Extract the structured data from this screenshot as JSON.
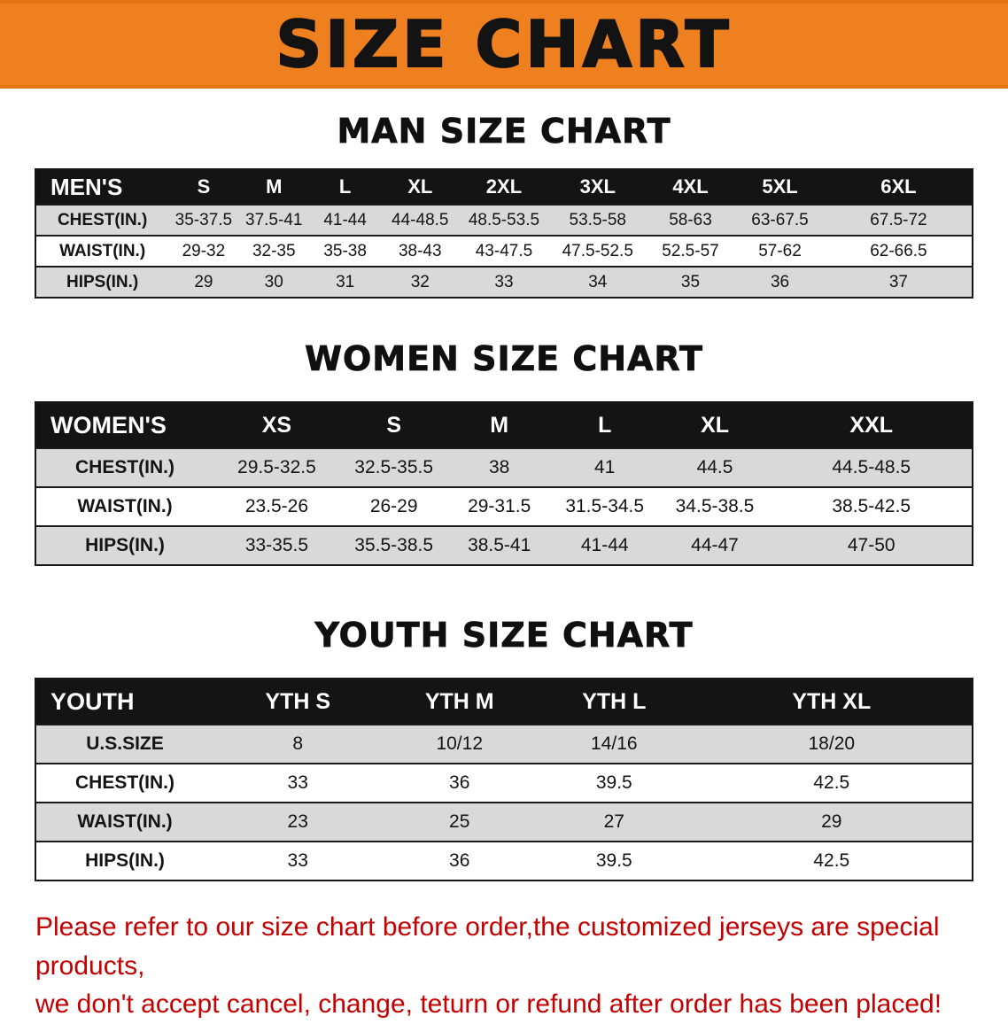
{
  "banner": {
    "title": "SIZE CHART",
    "background_color": "#ef8020",
    "text_color": "#131313"
  },
  "chart_data": [
    {
      "type": "table",
      "title": "MAN SIZE CHART",
      "label": "MEN'S",
      "columns": [
        "S",
        "M",
        "L",
        "XL",
        "2XL",
        "3XL",
        "4XL",
        "5XL",
        "6XL"
      ],
      "rows": [
        {
          "label": "CHEST(IN.)",
          "values": [
            "35-37.5",
            "37.5-41",
            "41-44",
            "44-48.5",
            "48.5-53.5",
            "53.5-58",
            "58-63",
            "63-67.5",
            "67.5-72"
          ]
        },
        {
          "label": "WAIST(IN.)",
          "values": [
            "29-32",
            "32-35",
            "35-38",
            "38-43",
            "43-47.5",
            "47.5-52.5",
            "52.5-57",
            "57-62",
            "62-66.5"
          ]
        },
        {
          "label": "HIPS(IN.)",
          "values": [
            "29",
            "30",
            "31",
            "32",
            "33",
            "34",
            "35",
            "36",
            "37"
          ]
        }
      ]
    },
    {
      "type": "table",
      "title": "WOMEN SIZE CHART",
      "label": "WOMEN'S",
      "columns": [
        "XS",
        "S",
        "M",
        "L",
        "XL",
        "XXL"
      ],
      "rows": [
        {
          "label": "CHEST(IN.)",
          "values": [
            "29.5-32.5",
            "32.5-35.5",
            "38",
            "41",
            "44.5",
            "44.5-48.5"
          ]
        },
        {
          "label": "WAIST(IN.)",
          "values": [
            "23.5-26",
            "26-29",
            "29-31.5",
            "31.5-34.5",
            "34.5-38.5",
            "38.5-42.5"
          ]
        },
        {
          "label": "HIPS(IN.)",
          "values": [
            "33-35.5",
            "35.5-38.5",
            "38.5-41",
            "41-44",
            "44-47",
            "47-50"
          ]
        }
      ]
    },
    {
      "type": "table",
      "title": "YOUTH SIZE CHART",
      "label": "YOUTH",
      "columns": [
        "YTH S",
        "YTH M",
        "YTH L",
        "YTH XL"
      ],
      "rows": [
        {
          "label": "U.S.SIZE",
          "values": [
            "8",
            "10/12",
            "14/16",
            "18/20"
          ]
        },
        {
          "label": "CHEST(IN.)",
          "values": [
            "33",
            "36",
            "39.5",
            "42.5"
          ]
        },
        {
          "label": "WAIST(IN.)",
          "values": [
            "23",
            "25",
            "27",
            "29"
          ]
        },
        {
          "label": "HIPS(IN.)",
          "values": [
            "33",
            "36",
            "39.5",
            "42.5"
          ]
        }
      ]
    }
  ],
  "disclaimer": {
    "line1": "Please refer to our size chart before order,the customized jerseys are special products,",
    "line2": "we don't accept cancel, change, teturn or refund after order has been placed!",
    "color": "#c40000"
  }
}
